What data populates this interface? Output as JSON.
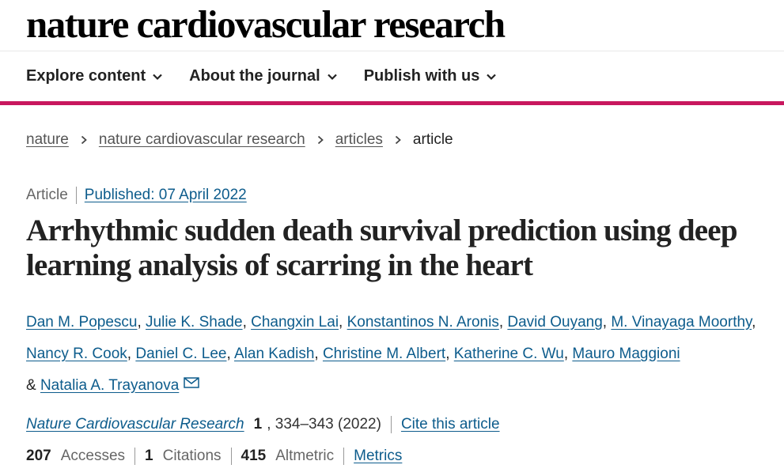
{
  "site": {
    "logo": "nature cardiovascular research"
  },
  "nav": {
    "items": [
      {
        "label": "Explore content"
      },
      {
        "label": "About the journal"
      },
      {
        "label": "Publish with us"
      }
    ]
  },
  "breadcrumb": {
    "items": [
      "nature",
      "nature cardiovascular research",
      "articles"
    ],
    "current": "article"
  },
  "article": {
    "type": "Article",
    "published": "Published: 07 April 2022",
    "title": "Arrhythmic sudden death survival prediction using deep learning analysis of scarring in the heart",
    "authors": [
      "Dan M. Popescu",
      "Julie K. Shade",
      "Changxin Lai",
      "Konstantinos N. Aronis",
      "David Ouyang",
      "M. Vinayaga Moorthy",
      "Nancy R. Cook",
      "Daniel C. Lee",
      "Alan Kadish",
      "Christine M. Albert",
      "Katherine C. Wu",
      "Mauro Maggioni"
    ],
    "author_joiner": "& ",
    "last_author": "Natalia A. Trayanova",
    "citation": {
      "journal": "Nature Cardiovascular Research",
      "volume": "1",
      "pages": ", 334–343 (2022)",
      "cite_label": "Cite this article"
    },
    "metrics": {
      "accesses": {
        "value": "207",
        "label": "Accesses"
      },
      "citations": {
        "value": "1",
        "label": "Citations"
      },
      "altmetric": {
        "value": "415",
        "label": "Altmetric"
      },
      "link": "Metrics"
    }
  },
  "colors": {
    "accent": "#c8175e",
    "link": "#0d5c8c"
  },
  "icons": {
    "nav_chevron": "chevron-down-icon",
    "breadcrumb_sep": "chevron-right-icon",
    "corresponding": "envelope-icon"
  }
}
